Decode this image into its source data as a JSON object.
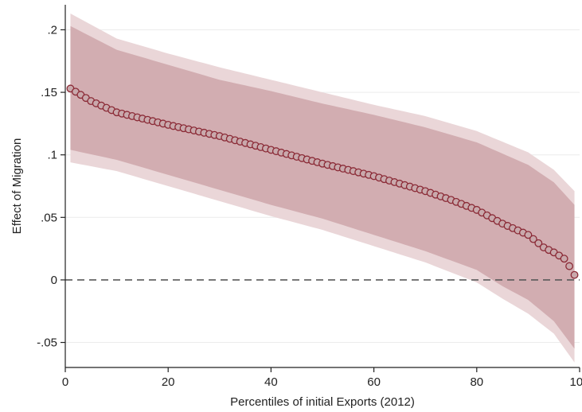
{
  "chart_data": {
    "type": "scatter",
    "title": "",
    "xlabel": "Percentiles of initial Exports (2012)",
    "ylabel": "Effect of Migration",
    "xlim": [
      0,
      100
    ],
    "ylim": [
      -0.07,
      0.22
    ],
    "xticks": [
      0,
      20,
      40,
      60,
      80,
      100
    ],
    "xtick_labels": [
      "0",
      "20",
      "40",
      "60",
      "80",
      "100"
    ],
    "yticks": [
      -0.05,
      0,
      0.05,
      0.1,
      0.15,
      0.2
    ],
    "ytick_labels": [
      "-.05",
      "0",
      ".05",
      ".1",
      ".15",
      ".2"
    ],
    "grid": "horizontal",
    "reference_line": {
      "y": 0,
      "style": "dashed"
    },
    "colors": {
      "marker_edge": "#8b2a36",
      "marker_fill": "#c9a9ac",
      "band_inner": "#d2adb1",
      "band_outer": "#ead6d8",
      "grid": "#ececec",
      "reference_line": "#5a5a5a"
    },
    "x_start": 1,
    "x_end": 99,
    "point_estimate_keypoints": [
      [
        1,
        0.153
      ],
      [
        3,
        0.148
      ],
      [
        5,
        0.143
      ],
      [
        10,
        0.134
      ],
      [
        20,
        0.124
      ],
      [
        30,
        0.115
      ],
      [
        40,
        0.104
      ],
      [
        50,
        0.093
      ],
      [
        60,
        0.083
      ],
      [
        70,
        0.071
      ],
      [
        75,
        0.064
      ],
      [
        80,
        0.056
      ],
      [
        85,
        0.045
      ],
      [
        90,
        0.036
      ],
      [
        93,
        0.026
      ],
      [
        95,
        0.022
      ],
      [
        97,
        0.017
      ],
      [
        98,
        0.011
      ],
      [
        99,
        0.004
      ]
    ],
    "ci95_upper_keypoints": [
      [
        1,
        0.213
      ],
      [
        10,
        0.193
      ],
      [
        20,
        0.181
      ],
      [
        30,
        0.17
      ],
      [
        40,
        0.16
      ],
      [
        50,
        0.15
      ],
      [
        60,
        0.14
      ],
      [
        70,
        0.131
      ],
      [
        80,
        0.119
      ],
      [
        90,
        0.102
      ],
      [
        95,
        0.088
      ],
      [
        99,
        0.071
      ]
    ],
    "ci95_lower_keypoints": [
      [
        1,
        0.094
      ],
      [
        10,
        0.087
      ],
      [
        20,
        0.075
      ],
      [
        30,
        0.063
      ],
      [
        40,
        0.051
      ],
      [
        50,
        0.04
      ],
      [
        60,
        0.027
      ],
      [
        70,
        0.014
      ],
      [
        80,
        -0.002
      ],
      [
        85,
        -0.015
      ],
      [
        90,
        -0.027
      ],
      [
        95,
        -0.043
      ],
      [
        99,
        -0.066
      ]
    ],
    "ci90_upper_keypoints": [
      [
        1,
        0.203
      ],
      [
        10,
        0.184
      ],
      [
        20,
        0.172
      ],
      [
        30,
        0.16
      ],
      [
        40,
        0.151
      ],
      [
        50,
        0.141
      ],
      [
        60,
        0.132
      ],
      [
        70,
        0.122
      ],
      [
        80,
        0.11
      ],
      [
        90,
        0.092
      ],
      [
        95,
        0.078
      ],
      [
        99,
        0.06
      ]
    ],
    "ci90_lower_keypoints": [
      [
        1,
        0.104
      ],
      [
        10,
        0.096
      ],
      [
        20,
        0.084
      ],
      [
        30,
        0.072
      ],
      [
        40,
        0.06
      ],
      [
        50,
        0.049
      ],
      [
        60,
        0.036
      ],
      [
        70,
        0.023
      ],
      [
        80,
        0.008
      ],
      [
        85,
        -0.005
      ],
      [
        90,
        -0.016
      ],
      [
        95,
        -0.033
      ],
      [
        99,
        -0.055
      ]
    ]
  }
}
